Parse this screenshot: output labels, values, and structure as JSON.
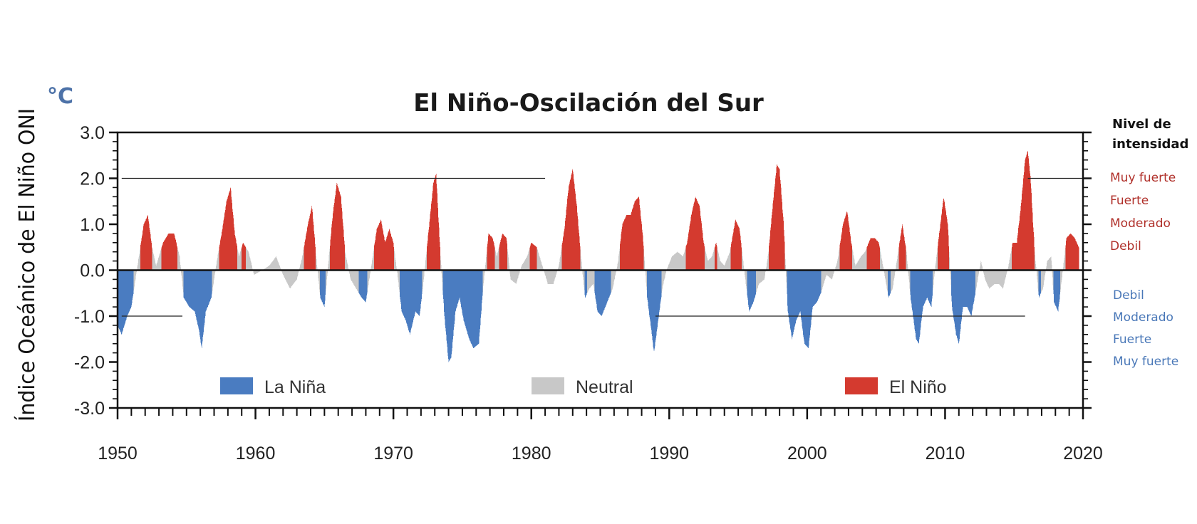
{
  "chart_data": {
    "type": "area",
    "title": "El Niño-Oscilación del Sur",
    "unit": "°C",
    "ylabel": "Índice Oceánico de El Niño ONI",
    "xlim": [
      1950,
      2020
    ],
    "ylim": [
      -3.0,
      3.0
    ],
    "x_ticks": [
      "1950",
      "1960",
      "1970",
      "1980",
      "1990",
      "2000",
      "2010",
      "2020"
    ],
    "y_ticks": [
      "3.0",
      "2.0",
      "1.0",
      "0.0",
      "-1.0",
      "-2.0",
      "-3.0"
    ],
    "thresholds": [
      -0.5,
      0.5
    ],
    "legend": [
      {
        "key": "la_nina",
        "label": "La Niña",
        "color": "#4a7cc1"
      },
      {
        "key": "neutral",
        "label": "Neutral",
        "color": "#c8c8c8"
      },
      {
        "key": "el_nino",
        "label": "El Niño",
        "color": "#d43a2f"
      }
    ],
    "intensity_panel": {
      "heading": [
        "Nivel de",
        "intensidad"
      ],
      "el_nino_levels": [
        "Muy fuerte",
        "Fuerte",
        "Moderado",
        "Debil"
      ],
      "la_nina_levels": [
        "Debil",
        "Moderado",
        "Fuerte",
        "Muy fuerte"
      ]
    },
    "reference_lines": [
      {
        "y": 2.0,
        "x": [
          1950.3,
          1981.0
        ]
      },
      {
        "y": 2.0,
        "x": [
          2016.0,
          2020.0
        ]
      },
      {
        "y": -1.0,
        "x": [
          1950.3,
          1954.7
        ]
      },
      {
        "y": -1.0,
        "x": [
          1989.0,
          2015.8
        ]
      }
    ],
    "series": [
      {
        "name": "ONI",
        "points": [
          [
            1950.0,
            -1.2
          ],
          [
            1950.3,
            -1.4
          ],
          [
            1950.7,
            -1.0
          ],
          [
            1951.0,
            -0.8
          ],
          [
            1951.3,
            -0.2
          ],
          [
            1951.6,
            0.4
          ],
          [
            1951.9,
            1.0
          ],
          [
            1952.2,
            1.2
          ],
          [
            1952.5,
            0.5
          ],
          [
            1952.8,
            0.1
          ],
          [
            1953.0,
            0.3
          ],
          [
            1953.3,
            0.6
          ],
          [
            1953.7,
            0.8
          ],
          [
            1954.1,
            0.8
          ],
          [
            1954.5,
            0.3
          ],
          [
            1954.8,
            -0.6
          ],
          [
            1955.2,
            -0.8
          ],
          [
            1955.6,
            -0.9
          ],
          [
            1955.9,
            -1.3
          ],
          [
            1956.1,
            -1.7
          ],
          [
            1956.4,
            -0.9
          ],
          [
            1956.8,
            -0.6
          ],
          [
            1957.2,
            0.2
          ],
          [
            1957.6,
            0.9
          ],
          [
            1957.9,
            1.5
          ],
          [
            1958.2,
            1.8
          ],
          [
            1958.5,
            0.8
          ],
          [
            1958.8,
            0.3
          ],
          [
            1959.1,
            0.6
          ],
          [
            1959.5,
            0.4
          ],
          [
            1959.9,
            -0.1
          ],
          [
            1960.5,
            0.0
          ],
          [
            1961.0,
            0.1
          ],
          [
            1961.5,
            0.3
          ],
          [
            1962.0,
            -0.1
          ],
          [
            1962.5,
            -0.4
          ],
          [
            1963.0,
            -0.2
          ],
          [
            1963.4,
            0.3
          ],
          [
            1963.8,
            1.0
          ],
          [
            1964.1,
            1.4
          ],
          [
            1964.4,
            0.3
          ],
          [
            1964.7,
            -0.6
          ],
          [
            1965.0,
            -0.8
          ],
          [
            1965.3,
            0.2
          ],
          [
            1965.6,
            1.2
          ],
          [
            1965.9,
            1.9
          ],
          [
            1966.2,
            1.6
          ],
          [
            1966.5,
            0.4
          ],
          [
            1966.9,
            -0.2
          ],
          [
            1967.3,
            -0.4
          ],
          [
            1967.7,
            -0.6
          ],
          [
            1968.0,
            -0.7
          ],
          [
            1968.4,
            0.1
          ],
          [
            1968.8,
            0.9
          ],
          [
            1969.1,
            1.1
          ],
          [
            1969.4,
            0.6
          ],
          [
            1969.7,
            0.9
          ],
          [
            1970.0,
            0.6
          ],
          [
            1970.3,
            -0.1
          ],
          [
            1970.6,
            -0.9
          ],
          [
            1970.9,
            -1.1
          ],
          [
            1971.2,
            -1.4
          ],
          [
            1971.6,
            -0.9
          ],
          [
            1971.9,
            -1.0
          ],
          [
            1972.2,
            -0.2
          ],
          [
            1972.6,
            1.0
          ],
          [
            1972.9,
            1.9
          ],
          [
            1973.1,
            2.1
          ],
          [
            1973.4,
            0.4
          ],
          [
            1973.7,
            -1.0
          ],
          [
            1974.0,
            -2.0
          ],
          [
            1974.2,
            -1.9
          ],
          [
            1974.5,
            -0.9
          ],
          [
            1974.8,
            -0.6
          ],
          [
            1975.1,
            -1.1
          ],
          [
            1975.5,
            -1.5
          ],
          [
            1975.8,
            -1.7
          ],
          [
            1976.2,
            -1.6
          ],
          [
            1976.5,
            -0.4
          ],
          [
            1976.9,
            0.8
          ],
          [
            1977.2,
            0.7
          ],
          [
            1977.5,
            0.3
          ],
          [
            1977.9,
            0.8
          ],
          [
            1978.2,
            0.7
          ],
          [
            1978.5,
            -0.2
          ],
          [
            1978.9,
            -0.3
          ],
          [
            1979.3,
            0.1
          ],
          [
            1979.7,
            0.3
          ],
          [
            1980.0,
            0.6
          ],
          [
            1980.4,
            0.5
          ],
          [
            1980.8,
            0.1
          ],
          [
            1981.2,
            -0.3
          ],
          [
            1981.6,
            -0.3
          ],
          [
            1982.0,
            0.1
          ],
          [
            1982.4,
            0.9
          ],
          [
            1982.7,
            1.8
          ],
          [
            1983.0,
            2.2
          ],
          [
            1983.3,
            1.4
          ],
          [
            1983.6,
            0.3
          ],
          [
            1983.9,
            -0.6
          ],
          [
            1984.2,
            -0.4
          ],
          [
            1984.5,
            -0.3
          ],
          [
            1984.8,
            -0.9
          ],
          [
            1985.1,
            -1.0
          ],
          [
            1985.5,
            -0.7
          ],
          [
            1985.9,
            -0.4
          ],
          [
            1986.3,
            0.2
          ],
          [
            1986.6,
            1.0
          ],
          [
            1986.9,
            1.2
          ],
          [
            1987.2,
            1.2
          ],
          [
            1987.5,
            1.5
          ],
          [
            1987.8,
            1.6
          ],
          [
            1988.1,
            0.7
          ],
          [
            1988.4,
            -0.6
          ],
          [
            1988.7,
            -1.3
          ],
          [
            1988.9,
            -1.8
          ],
          [
            1989.2,
            -1.1
          ],
          [
            1989.5,
            -0.4
          ],
          [
            1989.8,
            0.0
          ],
          [
            1990.2,
            0.3
          ],
          [
            1990.6,
            0.4
          ],
          [
            1991.0,
            0.3
          ],
          [
            1991.3,
            0.6
          ],
          [
            1991.6,
            1.2
          ],
          [
            1991.9,
            1.6
          ],
          [
            1992.2,
            1.4
          ],
          [
            1992.5,
            0.6
          ],
          [
            1992.8,
            0.2
          ],
          [
            1993.1,
            0.3
          ],
          [
            1993.4,
            0.6
          ],
          [
            1993.7,
            0.2
          ],
          [
            1994.0,
            0.1
          ],
          [
            1994.4,
            0.4
          ],
          [
            1994.8,
            1.1
          ],
          [
            1995.1,
            0.9
          ],
          [
            1995.4,
            0.1
          ],
          [
            1995.8,
            -0.9
          ],
          [
            1996.1,
            -0.7
          ],
          [
            1996.5,
            -0.3
          ],
          [
            1996.9,
            -0.2
          ],
          [
            1997.2,
            0.4
          ],
          [
            1997.5,
            1.4
          ],
          [
            1997.8,
            2.3
          ],
          [
            1998.0,
            2.2
          ],
          [
            1998.3,
            1.0
          ],
          [
            1998.6,
            -0.9
          ],
          [
            1998.9,
            -1.5
          ],
          [
            1999.2,
            -1.1
          ],
          [
            1999.5,
            -0.9
          ],
          [
            1999.8,
            -1.6
          ],
          [
            2000.1,
            -1.7
          ],
          [
            2000.4,
            -0.8
          ],
          [
            2000.7,
            -0.7
          ],
          [
            2001.0,
            -0.5
          ],
          [
            2001.4,
            -0.1
          ],
          [
            2001.8,
            -0.2
          ],
          [
            2002.2,
            0.2
          ],
          [
            2002.6,
            1.0
          ],
          [
            2002.9,
            1.3
          ],
          [
            2003.2,
            0.6
          ],
          [
            2003.5,
            0.1
          ],
          [
            2003.9,
            0.3
          ],
          [
            2004.2,
            0.4
          ],
          [
            2004.6,
            0.7
          ],
          [
            2004.9,
            0.7
          ],
          [
            2005.2,
            0.6
          ],
          [
            2005.5,
            0.1
          ],
          [
            2005.9,
            -0.6
          ],
          [
            2006.2,
            -0.4
          ],
          [
            2006.6,
            0.4
          ],
          [
            2006.9,
            1.0
          ],
          [
            2007.2,
            0.4
          ],
          [
            2007.5,
            -0.6
          ],
          [
            2007.9,
            -1.5
          ],
          [
            2008.1,
            -1.6
          ],
          [
            2008.4,
            -0.8
          ],
          [
            2008.7,
            -0.6
          ],
          [
            2009.0,
            -0.8
          ],
          [
            2009.3,
            0.1
          ],
          [
            2009.7,
            1.1
          ],
          [
            2009.9,
            1.6
          ],
          [
            2010.2,
            1.0
          ],
          [
            2010.5,
            -0.8
          ],
          [
            2010.8,
            -1.4
          ],
          [
            2011.0,
            -1.6
          ],
          [
            2011.3,
            -0.8
          ],
          [
            2011.6,
            -0.8
          ],
          [
            2011.9,
            -1.0
          ],
          [
            2012.2,
            -0.5
          ],
          [
            2012.6,
            0.2
          ],
          [
            2012.9,
            -0.2
          ],
          [
            2013.2,
            -0.4
          ],
          [
            2013.6,
            -0.3
          ],
          [
            2013.9,
            -0.3
          ],
          [
            2014.2,
            -0.4
          ],
          [
            2014.6,
            0.1
          ],
          [
            2014.9,
            0.6
          ],
          [
            2015.2,
            0.6
          ],
          [
            2015.5,
            1.4
          ],
          [
            2015.8,
            2.4
          ],
          [
            2016.0,
            2.6
          ],
          [
            2016.2,
            2.0
          ],
          [
            2016.5,
            0.4
          ],
          [
            2016.8,
            -0.6
          ],
          [
            2017.1,
            -0.4
          ],
          [
            2017.4,
            0.2
          ],
          [
            2017.7,
            0.3
          ],
          [
            2017.9,
            -0.7
          ],
          [
            2018.2,
            -0.9
          ],
          [
            2018.5,
            -0.1
          ],
          [
            2018.8,
            0.7
          ],
          [
            2019.1,
            0.8
          ],
          [
            2019.4,
            0.7
          ],
          [
            2019.7,
            0.5
          ]
        ]
      }
    ]
  }
}
